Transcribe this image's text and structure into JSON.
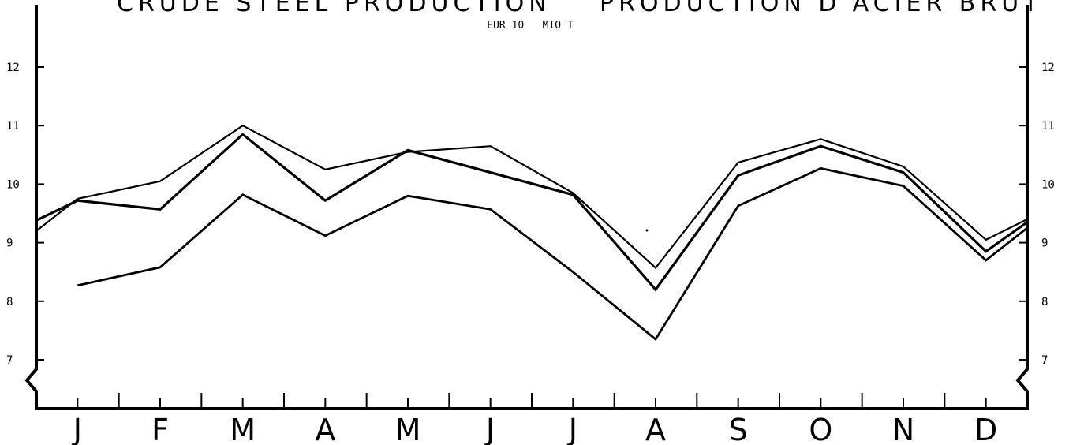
{
  "header": {
    "title_left": "CRUDE STEEL PRODUCTION",
    "title_right": "PRODUCTION D'ACIER BRUT",
    "unit_label": "EUR 10   MIO T"
  },
  "chart_data": {
    "type": "line",
    "title": "CRUDE STEEL PRODUCTION   PRODUCTION D'ACIER BRUT",
    "subtitle": "EUR 10   MIO T",
    "categories": [
      "J",
      "F",
      "M",
      "A",
      "M",
      "J",
      "J",
      "A",
      "S",
      "O",
      "N",
      "D"
    ],
    "yticks": [
      "7",
      "8",
      "9",
      "10",
      "11",
      "12"
    ],
    "ylim": [
      6.1,
      12.9
    ],
    "axis_break": true,
    "grid": false,
    "legend": "none",
    "series": [
      {
        "stroke_width": 2.2,
        "start": 9.2,
        "values": [
          9.75,
          10.05,
          11.0,
          10.25,
          10.55,
          10.65,
          9.85,
          8.57,
          10.37,
          10.77,
          10.3,
          9.05
        ],
        "end": 9.4
      },
      {
        "stroke_width": 3.2,
        "start": 9.38,
        "values": [
          9.72,
          9.57,
          10.85,
          9.72,
          10.58,
          10.2,
          9.82,
          8.2,
          10.15,
          10.65,
          10.2,
          8.85
        ],
        "end": 9.35
      },
      {
        "stroke_width": 2.8,
        "start": null,
        "values": [
          8.27,
          8.58,
          9.82,
          9.12,
          9.8,
          9.57,
          8.5,
          7.35,
          9.63,
          10.27,
          9.97,
          8.7
        ],
        "end": 9.25
      }
    ]
  }
}
